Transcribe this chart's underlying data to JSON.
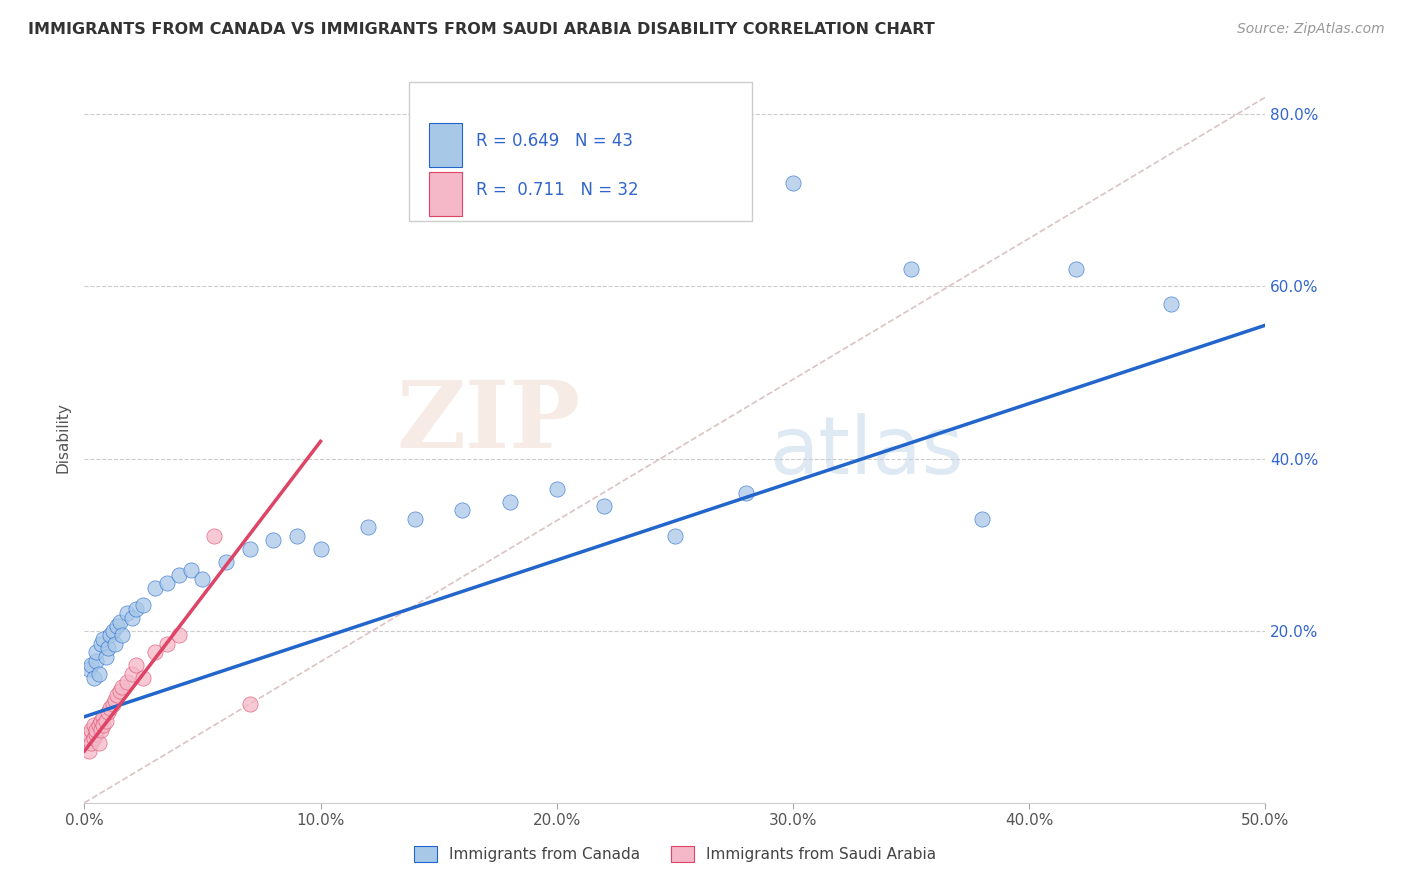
{
  "title": "IMMIGRANTS FROM CANADA VS IMMIGRANTS FROM SAUDI ARABIA DISABILITY CORRELATION CHART",
  "source": "Source: ZipAtlas.com",
  "xlabel_canada": "Immigrants from Canada",
  "xlabel_saudi": "Immigrants from Saudi Arabia",
  "ylabel": "Disability",
  "xlim": [
    0.0,
    0.5
  ],
  "ylim": [
    0.0,
    0.85
  ],
  "x_ticks": [
    0.0,
    0.1,
    0.2,
    0.3,
    0.4,
    0.5
  ],
  "x_tick_labels": [
    "0.0%",
    "10.0%",
    "20.0%",
    "30.0%",
    "40.0%",
    "50.0%"
  ],
  "y_ticks": [
    0.2,
    0.4,
    0.6,
    0.8
  ],
  "y_tick_labels": [
    "20.0%",
    "40.0%",
    "60.0%",
    "80.0%"
  ],
  "R_canada": 0.649,
  "N_canada": 43,
  "R_saudi": 0.711,
  "N_saudi": 32,
  "color_canada": "#a8c8e8",
  "color_saudi": "#f4b8c8",
  "trendline_canada": "#2266cc",
  "trendline_saudi": "#dd4466",
  "trendline_ref_color": "#ccaaaa",
  "canada_scatter_x": [
    0.002,
    0.003,
    0.004,
    0.005,
    0.005,
    0.006,
    0.007,
    0.008,
    0.009,
    0.01,
    0.011,
    0.012,
    0.013,
    0.014,
    0.015,
    0.016,
    0.018,
    0.02,
    0.022,
    0.025,
    0.03,
    0.035,
    0.04,
    0.045,
    0.05,
    0.06,
    0.07,
    0.08,
    0.09,
    0.1,
    0.12,
    0.14,
    0.16,
    0.18,
    0.2,
    0.22,
    0.25,
    0.28,
    0.3,
    0.35,
    0.38,
    0.42,
    0.46
  ],
  "canada_scatter_y": [
    0.155,
    0.16,
    0.145,
    0.165,
    0.175,
    0.15,
    0.185,
    0.19,
    0.17,
    0.18,
    0.195,
    0.2,
    0.185,
    0.205,
    0.21,
    0.195,
    0.22,
    0.215,
    0.225,
    0.23,
    0.25,
    0.255,
    0.265,
    0.27,
    0.26,
    0.28,
    0.295,
    0.305,
    0.31,
    0.295,
    0.32,
    0.33,
    0.34,
    0.35,
    0.365,
    0.345,
    0.31,
    0.36,
    0.72,
    0.62,
    0.33,
    0.62,
    0.58
  ],
  "saudi_scatter_x": [
    0.001,
    0.002,
    0.002,
    0.003,
    0.003,
    0.004,
    0.004,
    0.005,
    0.005,
    0.006,
    0.006,
    0.007,
    0.007,
    0.008,
    0.008,
    0.009,
    0.01,
    0.011,
    0.012,
    0.013,
    0.014,
    0.015,
    0.016,
    0.018,
    0.02,
    0.022,
    0.025,
    0.03,
    0.035,
    0.04,
    0.055,
    0.07
  ],
  "saudi_scatter_y": [
    0.075,
    0.08,
    0.06,
    0.07,
    0.085,
    0.075,
    0.09,
    0.08,
    0.085,
    0.09,
    0.07,
    0.095,
    0.085,
    0.1,
    0.09,
    0.095,
    0.105,
    0.11,
    0.115,
    0.12,
    0.125,
    0.13,
    0.135,
    0.14,
    0.15,
    0.16,
    0.145,
    0.175,
    0.185,
    0.195,
    0.31,
    0.115
  ],
  "canada_trend_x0": 0.0,
  "canada_trend_y0": 0.1,
  "canada_trend_x1": 0.5,
  "canada_trend_y1": 0.555,
  "saudi_trend_x0": 0.0,
  "saudi_trend_y0": 0.06,
  "saudi_trend_x1": 0.1,
  "saudi_trend_y1": 0.42,
  "ref_line_x0": 0.0,
  "ref_line_y0": 0.0,
  "ref_line_x1": 0.5,
  "ref_line_y1": 0.82,
  "watermark_zip": "ZIP",
  "watermark_atlas": "atlas"
}
